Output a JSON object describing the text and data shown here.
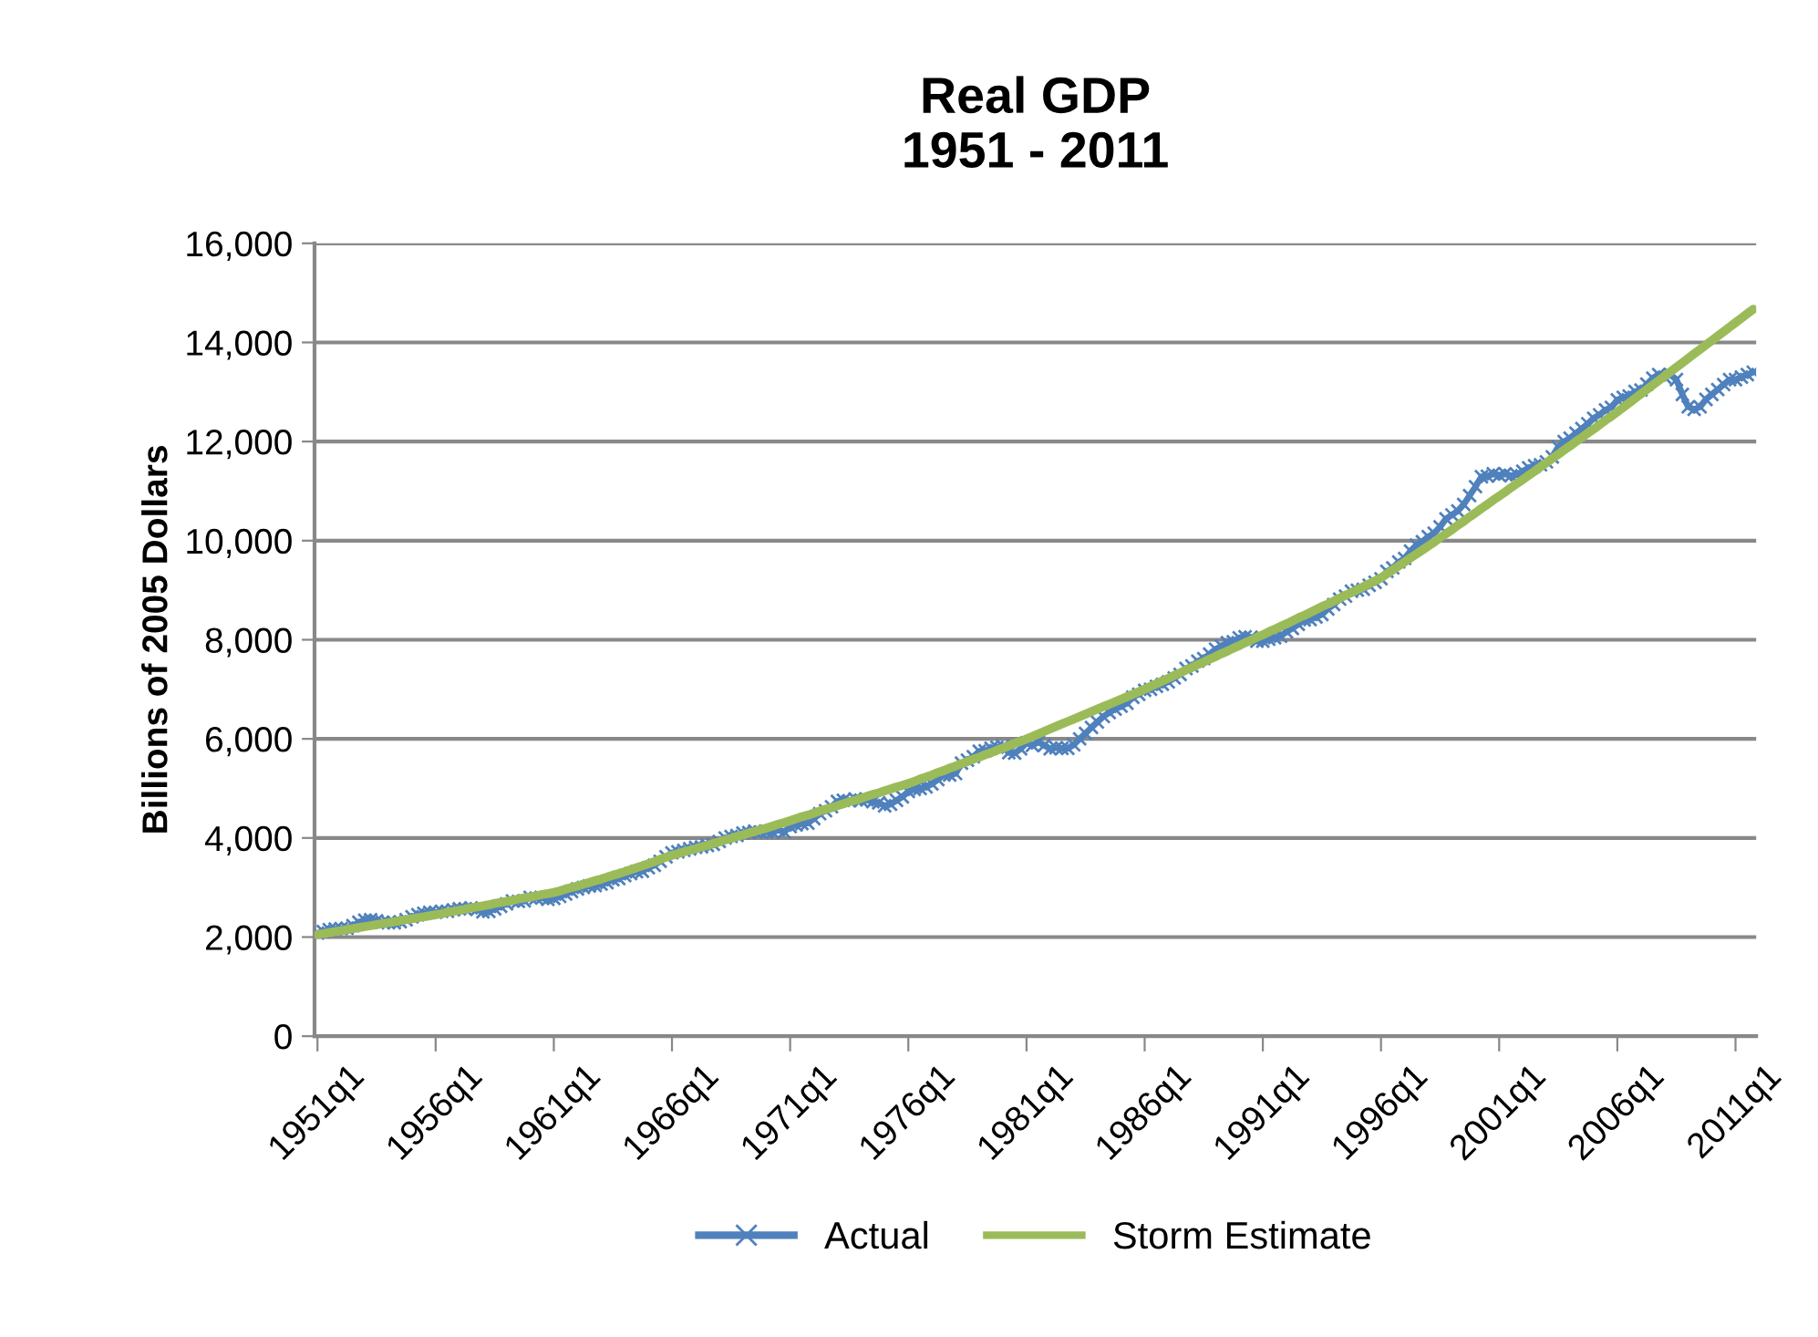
{
  "chart_data": {
    "type": "line",
    "title": "Real GDP\n1951 - 2011",
    "ylabel": "Billions of 2005 Dollars",
    "categories": [
      "1951q1",
      null,
      null,
      null,
      null,
      null,
      null,
      null,
      null,
      null,
      null,
      null,
      null,
      null,
      null,
      null,
      null,
      null,
      null,
      null,
      "1956q1",
      null,
      null,
      null,
      null,
      null,
      null,
      null,
      null,
      null,
      null,
      null,
      null,
      null,
      null,
      null,
      null,
      null,
      null,
      null,
      "1961q1",
      null,
      null,
      null,
      null,
      null,
      null,
      null,
      null,
      null,
      null,
      null,
      null,
      null,
      null,
      null,
      null,
      null,
      null,
      null,
      "1966q1",
      null,
      null,
      null,
      null,
      null,
      null,
      null,
      null,
      null,
      null,
      null,
      null,
      null,
      null,
      null,
      null,
      null,
      null,
      null,
      "1971q1",
      null,
      null,
      null,
      null,
      null,
      null,
      null,
      null,
      null,
      null,
      null,
      null,
      null,
      null,
      null,
      null,
      null,
      null,
      null,
      "1976q1",
      null,
      null,
      null,
      null,
      null,
      null,
      null,
      null,
      null,
      null,
      null,
      null,
      null,
      null,
      null,
      null,
      null,
      null,
      null,
      "1981q1",
      null,
      null,
      null,
      null,
      null,
      null,
      null,
      null,
      null,
      null,
      null,
      null,
      null,
      null,
      null,
      null,
      null,
      null,
      null,
      "1986q1",
      null,
      null,
      null,
      null,
      null,
      null,
      null,
      null,
      null,
      null,
      null,
      null,
      null,
      null,
      null,
      null,
      null,
      null,
      null,
      "1991q1",
      null,
      null,
      null,
      null,
      null,
      null,
      null,
      null,
      null,
      null,
      null,
      null,
      null,
      null,
      null,
      null,
      null,
      null,
      null,
      "1996q1",
      null,
      null,
      null,
      null,
      null,
      null,
      null,
      null,
      null,
      null,
      null,
      null,
      null,
      null,
      null,
      null,
      null,
      null,
      null,
      "2001q1",
      null,
      null,
      null,
      null,
      null,
      null,
      null,
      null,
      null,
      null,
      null,
      null,
      null,
      null,
      null,
      null,
      null,
      null,
      null,
      "2006q1",
      null,
      null,
      null,
      null,
      null,
      null,
      null,
      null,
      null,
      null,
      null,
      null,
      null,
      null,
      null,
      null,
      null,
      null,
      null,
      "2011q1",
      null,
      null,
      null
    ],
    "ylim": [
      0,
      16000
    ],
    "yticks": [
      0,
      {
        "value": 2000,
        "label": "2,000"
      },
      {
        "value": 4000,
        "label": "4,000"
      },
      {
        "value": 6000,
        "label": "6,000"
      },
      {
        "value": 8000,
        "label": "8,000"
      },
      {
        "value": 10000,
        "label": "10,000"
      },
      {
        "value": 12000,
        "label": "12,000"
      },
      {
        "value": 14000,
        "label": "14,000"
      },
      {
        "value": 16000,
        "label": "16,000"
      }
    ],
    "grid": "y",
    "legend": "bottom",
    "series": [
      {
        "name": "Actual",
        "color": "#4f81bd",
        "marker": "cross",
        "values": [
          2080,
          2110,
          2150,
          2160,
          2170,
          2180,
          2230,
          2300,
          2340,
          2350,
          2330,
          2300,
          2290,
          2290,
          2310,
          2350,
          2410,
          2450,
          2480,
          2500,
          2500,
          2520,
          2520,
          2550,
          2570,
          2570,
          2590,
          2560,
          2510,
          2520,
          2570,
          2620,
          2670,
          2730,
          2720,
          2730,
          2800,
          2790,
          2790,
          2760,
          2780,
          2820,
          2870,
          2920,
          2970,
          3000,
          3030,
          3040,
          3070,
          3100,
          3160,
          3180,
          3240,
          3280,
          3320,
          3330,
          3400,
          3450,
          3530,
          3620,
          3700,
          3720,
          3750,
          3780,
          3810,
          3820,
          3850,
          3870,
          3930,
          4000,
          4030,
          4050,
          4100,
          4110,
          4140,
          4120,
          4120,
          4120,
          4160,
          4120,
          4230,
          4260,
          4290,
          4300,
          4390,
          4490,
          4550,
          4630,
          4740,
          4760,
          4750,
          4790,
          4760,
          4770,
          4730,
          4710,
          4650,
          4680,
          4760,
          4830,
          4940,
          4980,
          5000,
          5030,
          5090,
          5180,
          5270,
          5270,
          5300,
          5510,
          5570,
          5640,
          5750,
          5760,
          5810,
          5830,
          5850,
          5720,
          5710,
          5800,
          5920,
          5870,
          5940,
          5870,
          5800,
          5820,
          5810,
          5810,
          5880,
          6000,
          6110,
          6230,
          6340,
          6450,
          6530,
          6600,
          6660,
          6720,
          6840,
          6900,
          6980,
          7000,
          7060,
          7100,
          7150,
          7230,
          7300,
          7420,
          7470,
          7570,
          7620,
          7710,
          7810,
          7870,
          7940,
          7960,
          8040,
          8060,
          8050,
          7970,
          7970,
          8010,
          8040,
          8070,
          8160,
          8230,
          8310,
          8400,
          8410,
          8460,
          8510,
          8620,
          8710,
          8820,
          8880,
          8980,
          9000,
          9020,
          9100,
          9160,
          9230,
          9380,
          9450,
          9570,
          9640,
          9790,
          9910,
          9980,
          10080,
          10150,
          10280,
          10440,
          10520,
          10600,
          10730,
          10910,
          11090,
          11290,
          11300,
          11350,
          11320,
          11350,
          11310,
          11330,
          11400,
          11470,
          11510,
          11530,
          11590,
          11690,
          11890,
          12000,
          12070,
          12170,
          12260,
          12360,
          12470,
          12540,
          12640,
          12690,
          12840,
          12890,
          12920,
          13010,
          13040,
          13160,
          13280,
          13350,
          13300,
          13350,
          13250,
          12950,
          12700,
          12650,
          12700,
          12850,
          12950,
          13050,
          13150,
          13250,
          13250,
          13300,
          13350,
          13400
        ]
      },
      {
        "name": "Storm Estimate",
        "color": "#9bbb59",
        "marker": "none",
        "values": [
          2050,
          2070,
          2090,
          2110,
          2130,
          2150,
          2170,
          2190,
          2210,
          2230,
          2250,
          2270,
          2290,
          2310,
          2330,
          2350,
          2370,
          2390,
          2410,
          2430,
          2450,
          2470,
          2500,
          2520,
          2540,
          2560,
          2590,
          2610,
          2630,
          2650,
          2680,
          2700,
          2720,
          2740,
          2770,
          2790,
          2810,
          2830,
          2860,
          2880,
          2900,
          2930,
          2970,
          3000,
          3030,
          3070,
          3100,
          3140,
          3170,
          3210,
          3250,
          3280,
          3320,
          3360,
          3400,
          3440,
          3480,
          3520,
          3570,
          3610,
          3650,
          3680,
          3720,
          3750,
          3780,
          3820,
          3850,
          3890,
          3920,
          3960,
          3990,
          4030,
          4060,
          4100,
          4130,
          4170,
          4200,
          4240,
          4280,
          4310,
          4350,
          4390,
          4430,
          4460,
          4500,
          4540,
          4580,
          4610,
          4650,
          4690,
          4730,
          4760,
          4800,
          4840,
          4880,
          4910,
          4950,
          4990,
          5030,
          5060,
          5100,
          5140,
          5190,
          5230,
          5270,
          5320,
          5360,
          5410,
          5450,
          5500,
          5540,
          5590,
          5630,
          5680,
          5720,
          5770,
          5810,
          5860,
          5910,
          5950,
          6000,
          6050,
          6100,
          6150,
          6200,
          6250,
          6300,
          6350,
          6400,
          6450,
          6500,
          6550,
          6600,
          6650,
          6700,
          6750,
          6800,
          6850,
          6900,
          6950,
          7000,
          7060,
          7110,
          7170,
          7220,
          7280,
          7330,
          7390,
          7440,
          7500,
          7550,
          7610,
          7660,
          7720,
          7770,
          7830,
          7880,
          7940,
          7990,
          8050,
          8100,
          8160,
          8210,
          8270,
          8320,
          8380,
          8440,
          8490,
          8550,
          8610,
          8670,
          8720,
          8780,
          8840,
          8900,
          8950,
          9010,
          9070,
          9130,
          9190,
          9250,
          9330,
          9410,
          9490,
          9570,
          9650,
          9730,
          9810,
          9890,
          9970,
          10060,
          10140,
          10220,
          10310,
          10390,
          10480,
          10560,
          10650,
          10730,
          10820,
          10900,
          10980,
          11070,
          11150,
          11230,
          11320,
          11400,
          11490,
          11570,
          11660,
          11740,
          11830,
          11910,
          12000,
          12080,
          12170,
          12250,
          12340,
          12430,
          12510,
          12600,
          12690,
          12780,
          12870,
          12960,
          13050,
          13140,
          13230,
          13320,
          13410,
          13500,
          13590,
          13680,
          13770,
          13860,
          13950,
          14040,
          14130,
          14220,
          14310,
          14400,
          14490,
          14580,
          14670
        ]
      }
    ]
  }
}
